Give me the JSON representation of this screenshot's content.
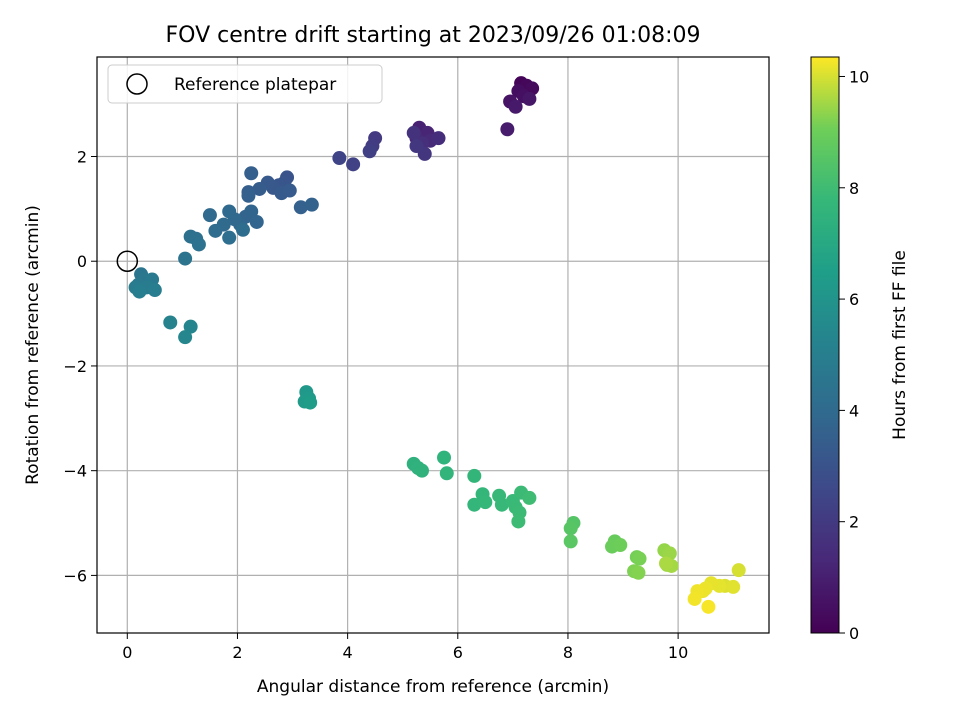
{
  "chart_data": {
    "type": "scatter",
    "title": "FOV centre drift starting at 2023/09/26 01:08:09",
    "xlabel": "Angular distance from reference (arcmin)",
    "ylabel": "Rotation from reference (arcmin)",
    "xlim": [
      -0.55,
      11.65
    ],
    "ylim": [
      -7.1,
      3.9
    ],
    "grid": true,
    "legend": {
      "location": "upper-left",
      "entries": [
        "Reference platepar"
      ]
    },
    "x_ticks": [
      0,
      2,
      4,
      6,
      8,
      10
    ],
    "x_tick_labels": [
      "0",
      "2",
      "4",
      "6",
      "8",
      "10"
    ],
    "y_ticks": [
      -6,
      -4,
      -2,
      0,
      2
    ],
    "y_tick_labels": [
      "−6",
      "−4",
      "−2",
      "0",
      "2"
    ],
    "colorbar": {
      "label": "Hours from first FF file",
      "colormap": "viridis",
      "range": [
        0,
        10.35
      ],
      "ticks": [
        0,
        2,
        4,
        6,
        8,
        10
      ],
      "tick_labels": [
        "0",
        "2",
        "4",
        "6",
        "8",
        "10"
      ]
    },
    "reference_point": {
      "x": 0,
      "y": 0
    },
    "points": [
      {
        "x": 7.15,
        "y": 3.4,
        "t": 0.1
      },
      {
        "x": 7.25,
        "y": 3.35,
        "t": 0.2
      },
      {
        "x": 7.35,
        "y": 3.3,
        "t": 0.3
      },
      {
        "x": 7.1,
        "y": 3.25,
        "t": 0.4
      },
      {
        "x": 7.2,
        "y": 3.15,
        "t": 0.5
      },
      {
        "x": 6.95,
        "y": 3.05,
        "t": 0.6
      },
      {
        "x": 7.3,
        "y": 3.1,
        "t": 0.7
      },
      {
        "x": 7.05,
        "y": 2.95,
        "t": 0.8
      },
      {
        "x": 6.9,
        "y": 2.52,
        "t": 0.9
      },
      {
        "x": 5.3,
        "y": 2.55,
        "t": 1.1
      },
      {
        "x": 5.45,
        "y": 2.45,
        "t": 1.2
      },
      {
        "x": 5.25,
        "y": 2.35,
        "t": 1.3
      },
      {
        "x": 5.5,
        "y": 2.3,
        "t": 1.4
      },
      {
        "x": 5.65,
        "y": 2.35,
        "t": 1.5
      },
      {
        "x": 5.35,
        "y": 2.25,
        "t": 1.6
      },
      {
        "x": 5.2,
        "y": 2.45,
        "t": 1.7
      },
      {
        "x": 5.4,
        "y": 2.05,
        "t": 1.8
      },
      {
        "x": 5.25,
        "y": 2.2,
        "t": 1.9
      },
      {
        "x": 4.5,
        "y": 2.35,
        "t": 2.0
      },
      {
        "x": 4.45,
        "y": 2.2,
        "t": 2.1
      },
      {
        "x": 4.4,
        "y": 2.1,
        "t": 2.2
      },
      {
        "x": 4.1,
        "y": 1.85,
        "t": 2.3
      },
      {
        "x": 3.85,
        "y": 1.97,
        "t": 2.4
      },
      {
        "x": 2.9,
        "y": 1.6,
        "t": 3.0
      },
      {
        "x": 2.85,
        "y": 1.5,
        "t": 3.1
      },
      {
        "x": 2.75,
        "y": 1.45,
        "t": 3.15
      },
      {
        "x": 2.65,
        "y": 1.4,
        "t": 3.2
      },
      {
        "x": 2.55,
        "y": 1.5,
        "t": 3.25
      },
      {
        "x": 2.8,
        "y": 1.3,
        "t": 3.3
      },
      {
        "x": 2.95,
        "y": 1.35,
        "t": 3.35
      },
      {
        "x": 2.4,
        "y": 1.38,
        "t": 3.4
      },
      {
        "x": 2.2,
        "y": 1.32,
        "t": 3.45
      },
      {
        "x": 2.25,
        "y": 1.68,
        "t": 3.5
      },
      {
        "x": 2.2,
        "y": 1.25,
        "t": 3.55
      },
      {
        "x": 3.15,
        "y": 1.03,
        "t": 3.6
      },
      {
        "x": 3.35,
        "y": 1.08,
        "t": 3.65
      },
      {
        "x": 2.15,
        "y": 0.85,
        "t": 3.7
      },
      {
        "x": 2.25,
        "y": 0.95,
        "t": 3.75
      },
      {
        "x": 2.35,
        "y": 0.75,
        "t": 3.8
      },
      {
        "x": 2.05,
        "y": 0.7,
        "t": 3.85
      },
      {
        "x": 1.95,
        "y": 0.8,
        "t": 3.9
      },
      {
        "x": 1.85,
        "y": 0.95,
        "t": 3.95
      },
      {
        "x": 1.5,
        "y": 0.88,
        "t": 4.0
      },
      {
        "x": 1.75,
        "y": 0.7,
        "t": 4.05
      },
      {
        "x": 1.6,
        "y": 0.58,
        "t": 4.1
      },
      {
        "x": 2.1,
        "y": 0.6,
        "t": 4.15
      },
      {
        "x": 1.85,
        "y": 0.45,
        "t": 4.2
      },
      {
        "x": 1.15,
        "y": 0.47,
        "t": 4.3
      },
      {
        "x": 1.25,
        "y": 0.43,
        "t": 4.35
      },
      {
        "x": 1.3,
        "y": 0.32,
        "t": 4.4
      },
      {
        "x": 1.05,
        "y": 0.05,
        "t": 4.5
      },
      {
        "x": 0.25,
        "y": -0.25,
        "t": 4.6
      },
      {
        "x": 0.3,
        "y": -0.35,
        "t": 4.65
      },
      {
        "x": 0.4,
        "y": -0.4,
        "t": 4.7
      },
      {
        "x": 0.2,
        "y": -0.45,
        "t": 4.75
      },
      {
        "x": 0.45,
        "y": -0.35,
        "t": 4.8
      },
      {
        "x": 0.15,
        "y": -0.5,
        "t": 4.85
      },
      {
        "x": 0.35,
        "y": -0.5,
        "t": 4.9
      },
      {
        "x": 0.5,
        "y": -0.55,
        "t": 4.95
      },
      {
        "x": 0.22,
        "y": -0.58,
        "t": 5.0
      },
      {
        "x": 0.78,
        "y": -1.17,
        "t": 5.2
      },
      {
        "x": 1.15,
        "y": -1.25,
        "t": 5.3
      },
      {
        "x": 1.05,
        "y": -1.45,
        "t": 5.4
      },
      {
        "x": 3.25,
        "y": -2.5,
        "t": 6.2
      },
      {
        "x": 3.3,
        "y": -2.62,
        "t": 6.3
      },
      {
        "x": 3.22,
        "y": -2.68,
        "t": 6.35
      },
      {
        "x": 3.32,
        "y": -2.7,
        "t": 6.4
      },
      {
        "x": 5.2,
        "y": -3.87,
        "t": 7.4
      },
      {
        "x": 5.28,
        "y": -3.95,
        "t": 7.45
      },
      {
        "x": 5.35,
        "y": -4.0,
        "t": 7.5
      },
      {
        "x": 5.75,
        "y": -3.75,
        "t": 7.55
      },
      {
        "x": 5.8,
        "y": -4.05,
        "t": 7.6
      },
      {
        "x": 6.3,
        "y": -4.1,
        "t": 7.65
      },
      {
        "x": 6.3,
        "y": -4.65,
        "t": 7.7
      },
      {
        "x": 6.45,
        "y": -4.45,
        "t": 7.72
      },
      {
        "x": 6.5,
        "y": -4.6,
        "t": 7.75
      },
      {
        "x": 6.75,
        "y": -4.48,
        "t": 7.8
      },
      {
        "x": 6.8,
        "y": -4.65,
        "t": 7.82
      },
      {
        "x": 7.0,
        "y": -4.58,
        "t": 7.85
      },
      {
        "x": 7.05,
        "y": -4.7,
        "t": 7.88
      },
      {
        "x": 7.15,
        "y": -4.42,
        "t": 7.9
      },
      {
        "x": 7.12,
        "y": -4.8,
        "t": 7.92
      },
      {
        "x": 7.1,
        "y": -4.97,
        "t": 7.95
      },
      {
        "x": 7.3,
        "y": -4.52,
        "t": 7.98
      },
      {
        "x": 8.1,
        "y": -5.0,
        "t": 8.5
      },
      {
        "x": 8.05,
        "y": -5.1,
        "t": 8.55
      },
      {
        "x": 8.05,
        "y": -5.35,
        "t": 8.6
      },
      {
        "x": 8.85,
        "y": -5.35,
        "t": 8.9
      },
      {
        "x": 8.8,
        "y": -5.45,
        "t": 8.95
      },
      {
        "x": 8.95,
        "y": -5.42,
        "t": 9.0
      },
      {
        "x": 9.25,
        "y": -5.65,
        "t": 9.1
      },
      {
        "x": 9.3,
        "y": -5.68,
        "t": 9.15
      },
      {
        "x": 9.2,
        "y": -5.92,
        "t": 9.2
      },
      {
        "x": 9.28,
        "y": -5.95,
        "t": 9.25
      },
      {
        "x": 9.75,
        "y": -5.52,
        "t": 9.4
      },
      {
        "x": 9.85,
        "y": -5.58,
        "t": 9.45
      },
      {
        "x": 9.8,
        "y": -5.8,
        "t": 9.5
      },
      {
        "x": 9.88,
        "y": -5.82,
        "t": 9.55
      },
      {
        "x": 9.78,
        "y": -5.77,
        "t": 9.6
      },
      {
        "x": 11.1,
        "y": -5.9,
        "t": 10.0
      },
      {
        "x": 10.85,
        "y": -6.2,
        "t": 10.05
      },
      {
        "x": 11.0,
        "y": -6.22,
        "t": 10.1
      },
      {
        "x": 10.75,
        "y": -6.2,
        "t": 10.12
      },
      {
        "x": 10.6,
        "y": -6.15,
        "t": 10.15
      },
      {
        "x": 10.5,
        "y": -6.25,
        "t": 10.18
      },
      {
        "x": 10.45,
        "y": -6.3,
        "t": 10.2
      },
      {
        "x": 10.35,
        "y": -6.3,
        "t": 10.22
      },
      {
        "x": 10.3,
        "y": -6.45,
        "t": 10.25
      },
      {
        "x": 10.55,
        "y": -6.6,
        "t": 10.3
      }
    ]
  }
}
